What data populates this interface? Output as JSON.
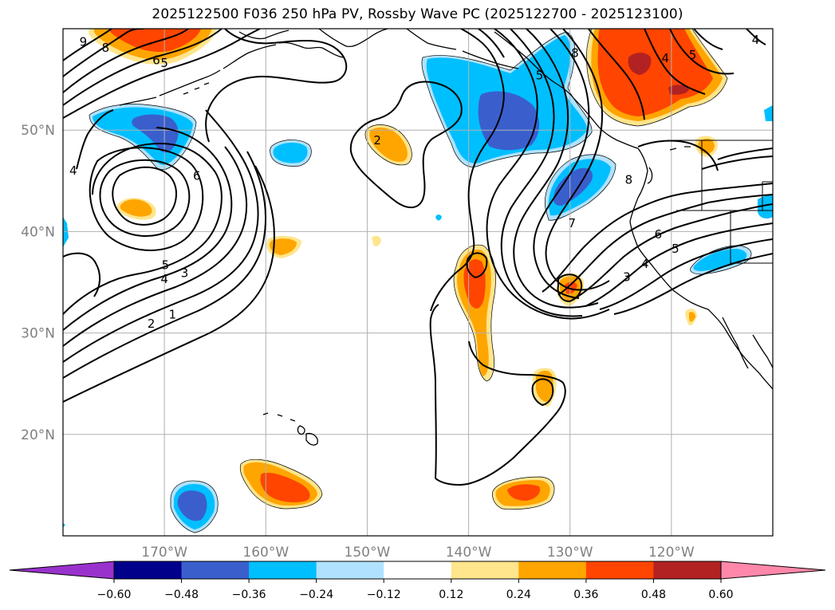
{
  "title": "2025122500 F036 250 hPa PV, Rossby Wave PC (2025122700 - 2025123100)",
  "map": {
    "projection": "PlateCarree",
    "lon_range": [
      -180,
      -110
    ],
    "lat_range": [
      10,
      60
    ],
    "lat_ticks": [
      {
        "value": 20,
        "label": "20°N"
      },
      {
        "value": 30,
        "label": "30°N"
      },
      {
        "value": 40,
        "label": "40°N"
      },
      {
        "value": 50,
        "label": "50°N"
      }
    ],
    "lon_ticks": [
      {
        "value": -170,
        "label": "170°W"
      },
      {
        "value": -160,
        "label": "160°W"
      },
      {
        "value": -150,
        "label": "150°W"
      },
      {
        "value": -140,
        "label": "140°W"
      },
      {
        "value": -130,
        "label": "130°W"
      },
      {
        "value": -120,
        "label": "120°W"
      }
    ],
    "grid": true,
    "contour_labels": [
      {
        "text": "9",
        "lon": -178,
        "lat": 58.7
      },
      {
        "text": "8",
        "lon": -175.8,
        "lat": 58.1
      },
      {
        "text": "6",
        "lon": -170.8,
        "lat": 56.9
      },
      {
        "text": "5",
        "lon": -170.0,
        "lat": 56.6
      },
      {
        "text": "4",
        "lon": -179.0,
        "lat": 46.0
      },
      {
        "text": "6",
        "lon": -166.8,
        "lat": 45.5
      },
      {
        "text": "5",
        "lon": -169.9,
        "lat": 36.7
      },
      {
        "text": "4",
        "lon": -170.0,
        "lat": 35.3
      },
      {
        "text": "3",
        "lon": -168.0,
        "lat": 35.9
      },
      {
        "text": "2",
        "lon": -171.3,
        "lat": 30.9
      },
      {
        "text": "1",
        "lon": -169.2,
        "lat": 31.8
      },
      {
        "text": "2",
        "lon": -149.0,
        "lat": 49.0
      },
      {
        "text": "8",
        "lon": -129.5,
        "lat": 57.6
      },
      {
        "text": "5",
        "lon": -133.0,
        "lat": 55.4
      },
      {
        "text": "7",
        "lon": -129.8,
        "lat": 40.8
      },
      {
        "text": "8",
        "lon": -124.2,
        "lat": 45.1
      },
      {
        "text": "6",
        "lon": -121.3,
        "lat": 39.7
      },
      {
        "text": "5",
        "lon": -119.6,
        "lat": 38.3
      },
      {
        "text": "4",
        "lon": -122.6,
        "lat": 36.8
      },
      {
        "text": "3",
        "lon": -124.4,
        "lat": 35.5
      },
      {
        "text": "4",
        "lon": -120.6,
        "lat": 57.1
      },
      {
        "text": "5",
        "lon": -117.9,
        "lat": 57.4
      },
      {
        "text": "4",
        "lon": -111.7,
        "lat": 58.9
      }
    ]
  },
  "colorbar": {
    "extend": "both",
    "tick_labels": [
      "−0.60",
      "−0.48",
      "−0.36",
      "−0.24",
      "−0.12",
      "0.12",
      "0.24",
      "0.36",
      "0.48",
      "0.60"
    ],
    "colors": [
      "#9932cc",
      "#00008b",
      "#3a5fcd",
      "#00bfff",
      "#b0e2ff",
      "#ffffff",
      "#ffe58c",
      "#ffa500",
      "#ff4500",
      "#b22222",
      "#ff88aa"
    ]
  }
}
